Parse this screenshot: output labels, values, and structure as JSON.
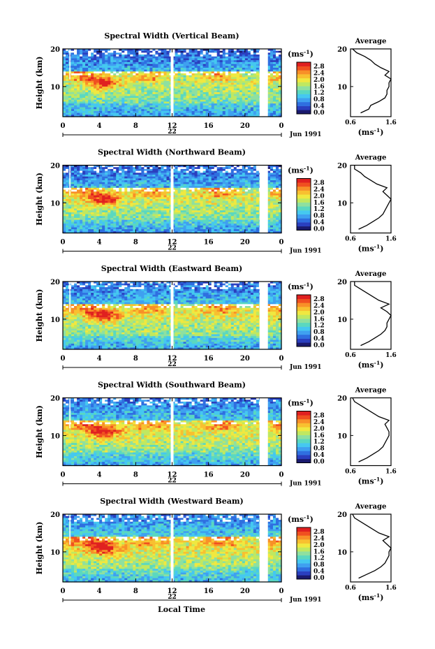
{
  "chart_data": [
    {
      "type": "heatmap",
      "title": "Spectral Width (Vertical Beam)",
      "ylabel": "Height (km)",
      "ylim": [
        2,
        20
      ],
      "yticks": [
        "20",
        "10"
      ],
      "xlim": [
        0,
        24
      ],
      "xticks": [
        "0",
        "4",
        "8",
        "12",
        "16",
        "20",
        "0"
      ],
      "day_label": "22",
      "date_label": "Jun 1991",
      "colorbar": {
        "unit": "(ms-1)",
        "ticks": [
          "2.8",
          "2.4",
          "2.0",
          "1.6",
          "1.2",
          "0.8",
          "0.4",
          "0.0"
        ]
      },
      "average": {
        "title": "Average",
        "xlabel": "(ms-1)",
        "xticks": [
          "0.6",
          "1.6"
        ],
        "yticks": [
          "20",
          "10"
        ],
        "heights": [
          3,
          4,
          5,
          6,
          7,
          8,
          9,
          10,
          11,
          12,
          13,
          14,
          15,
          16,
          17,
          18,
          19,
          20
        ],
        "values": [
          0.85,
          1.05,
          1.1,
          1.3,
          1.45,
          1.5,
          1.5,
          1.55,
          1.55,
          1.6,
          1.45,
          1.55,
          1.35,
          1.2,
          1.1,
          0.95,
          0.75,
          0.65
        ]
      }
    },
    {
      "type": "heatmap",
      "title": "Spectral Width (Northward Beam)",
      "ylabel": "Height (km)",
      "ylim": [
        2,
        20
      ],
      "yticks": [
        "20",
        "10"
      ],
      "xlim": [
        0,
        24
      ],
      "xticks": [
        "0",
        "4",
        "8",
        "12",
        "16",
        "20",
        "0"
      ],
      "day_label": "22",
      "date_label": "Jun 1991",
      "colorbar": {
        "unit": "(ms-1)",
        "ticks": [
          "2.8",
          "2.4",
          "2.0",
          "1.6",
          "1.2",
          "0.8",
          "0.4",
          "0.0"
        ]
      },
      "average": {
        "title": "Average",
        "xlabel": "(ms-1)",
        "xticks": [
          "0.6",
          "1.6"
        ],
        "yticks": [
          "20",
          "10"
        ],
        "heights": [
          3,
          4,
          5,
          6,
          7,
          8,
          9,
          10,
          11,
          12,
          13,
          14,
          15,
          16,
          17,
          18,
          19,
          20
        ],
        "values": [
          0.8,
          1.0,
          1.15,
          1.3,
          1.4,
          1.45,
          1.5,
          1.55,
          1.6,
          1.5,
          1.4,
          1.5,
          1.25,
          1.1,
          0.95,
          0.85,
          0.7,
          0.7
        ]
      }
    },
    {
      "type": "heatmap",
      "title": "Spectral Width (Eastward Beam)",
      "ylabel": "Height (km)",
      "ylim": [
        2,
        20
      ],
      "yticks": [
        "20",
        "10"
      ],
      "xlim": [
        0,
        24
      ],
      "xticks": [
        "0",
        "4",
        "8",
        "12",
        "16",
        "20",
        "0"
      ],
      "day_label": "22",
      "date_label": "Jun 1991",
      "colorbar": {
        "unit": "(ms-1)",
        "ticks": [
          "2.8",
          "2.4",
          "2.0",
          "1.6",
          "1.2",
          "0.8",
          "0.4",
          "0.0"
        ]
      },
      "average": {
        "title": "Average",
        "xlabel": "(ms-1)",
        "xticks": [
          "0.6",
          "1.6"
        ],
        "yticks": [
          "20",
          "10"
        ],
        "heights": [
          3,
          4,
          5,
          6,
          7,
          8,
          9,
          10,
          11,
          12,
          13,
          14,
          15,
          16,
          17,
          18,
          19,
          20
        ],
        "values": [
          0.85,
          1.05,
          1.2,
          1.35,
          1.45,
          1.5,
          1.5,
          1.55,
          1.6,
          1.5,
          1.35,
          1.55,
          1.3,
          1.15,
          1.0,
          0.85,
          0.7,
          0.7
        ]
      }
    },
    {
      "type": "heatmap",
      "title": "Spectral Width (Southward Beam)",
      "ylabel": "Height (km)",
      "ylim": [
        2,
        20
      ],
      "yticks": [
        "20",
        "10"
      ],
      "xlim": [
        0,
        24
      ],
      "xticks": [
        "0",
        "4",
        "8",
        "12",
        "16",
        "20",
        "0"
      ],
      "day_label": "22",
      "date_label": "Jun 1991",
      "colorbar": {
        "unit": "(ms-1)",
        "ticks": [
          "2.8",
          "2.4",
          "2.0",
          "1.6",
          "1.2",
          "0.8",
          "0.4",
          "0.0"
        ]
      },
      "average": {
        "title": "Average",
        "xlabel": "(ms-1)",
        "xticks": [
          "0.6",
          "1.6"
        ],
        "yticks": [
          "20",
          "10"
        ],
        "heights": [
          3,
          4,
          5,
          6,
          7,
          8,
          9,
          10,
          11,
          12,
          13,
          14,
          15,
          16,
          17,
          18,
          19,
          20
        ],
        "values": [
          0.8,
          1.0,
          1.15,
          1.3,
          1.4,
          1.45,
          1.5,
          1.55,
          1.55,
          1.5,
          1.45,
          1.55,
          1.3,
          1.15,
          1.0,
          0.85,
          0.7,
          0.65
        ]
      }
    },
    {
      "type": "heatmap",
      "title": "Spectral Width (Westward Beam)",
      "ylabel": "Height (km)",
      "ylim": [
        2,
        20
      ],
      "yticks": [
        "20",
        "10"
      ],
      "xlim": [
        0,
        24
      ],
      "xticks": [
        "0",
        "4",
        "8",
        "12",
        "16",
        "20",
        "0"
      ],
      "day_label": "22",
      "date_label": "Jun 1991",
      "colorbar": {
        "unit": "(ms-1)",
        "ticks": [
          "2.8",
          "2.4",
          "2.0",
          "1.6",
          "1.2",
          "0.8",
          "0.4",
          "0.0"
        ]
      },
      "average": {
        "title": "Average",
        "xlabel": "(ms-1)",
        "xticks": [
          "0.6",
          "1.6"
        ],
        "yticks": [
          "20",
          "10"
        ],
        "heights": [
          3,
          4,
          5,
          6,
          7,
          8,
          9,
          10,
          11,
          12,
          13,
          14,
          15,
          16,
          17,
          18,
          19,
          20
        ],
        "values": [
          0.8,
          1.0,
          1.2,
          1.35,
          1.45,
          1.5,
          1.55,
          1.55,
          1.6,
          1.5,
          1.4,
          1.55,
          1.3,
          1.15,
          1.0,
          0.85,
          0.7,
          0.65
        ]
      }
    }
  ],
  "xlabel": "Local Time",
  "colormap": [
    "#1a1a6e",
    "#2a3fbf",
    "#2f6fe0",
    "#3fa0f0",
    "#45c8f0",
    "#5ad8c0",
    "#8ee0a0",
    "#c0e860",
    "#f0e840",
    "#f8c030",
    "#f89028",
    "#f05020",
    "#e02020"
  ]
}
